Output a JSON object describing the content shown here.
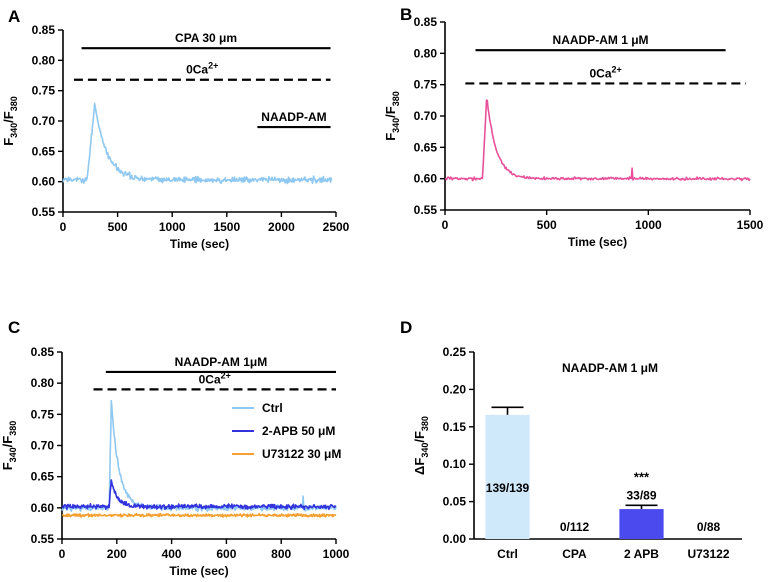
{
  "colors": {
    "panelA": "#8fc8f0",
    "panelB": "#e8509a",
    "ctrl": "#8fc8f0",
    "apb": "#3333dd",
    "u73122": "#f5a030",
    "barCtrl": "#cfe8fa",
    "bar2apb": "#4a4aee"
  },
  "chart_data": [
    {
      "panel": "A",
      "type": "line",
      "xlabel": "Time (sec)",
      "ylabel_main": "F",
      "ylabel_sub1": "340",
      "ylabel_sep": "/F",
      "ylabel_sub2": "380",
      "xlim": [
        0,
        2500
      ],
      "ylim": [
        0.55,
        0.85
      ],
      "xticks": [
        0,
        500,
        1000,
        1500,
        2000,
        2500
      ],
      "yticks": [
        0.55,
        0.6,
        0.65,
        0.7,
        0.75,
        0.8,
        0.85
      ],
      "annotations": [
        {
          "label": "CPA 30 μm",
          "style": "solid",
          "x": [
            170,
            2450
          ],
          "y": 0.82
        },
        {
          "label": "0Ca",
          "sup": "2+",
          "style": "dashed",
          "x": [
            100,
            2450
          ],
          "y": 0.768
        },
        {
          "label": "NAADP-AM",
          "style": "solid",
          "x": [
            1780,
            2450
          ],
          "y": 0.69
        }
      ],
      "series": [
        {
          "name": "CPA trace",
          "baseline": 0.603,
          "peak_x": 290,
          "peak_y": 0.728,
          "rise_x": 220,
          "decay": 110,
          "end_x": 2460
        }
      ]
    },
    {
      "panel": "B",
      "type": "line",
      "xlabel": "Time (sec)",
      "ylabel_main": "F",
      "ylabel_sub1": "340",
      "ylabel_sep": "/F",
      "ylabel_sub2": "380",
      "xlim": [
        0,
        1500
      ],
      "ylim": [
        0.55,
        0.85
      ],
      "xticks": [
        0,
        500,
        1000,
        1500
      ],
      "yticks": [
        0.55,
        0.6,
        0.65,
        0.7,
        0.75,
        0.8,
        0.85
      ],
      "annotations": [
        {
          "label": "NAADP-AM 1 μM",
          "style": "solid",
          "x": [
            150,
            1380
          ],
          "y": 0.805
        },
        {
          "label": "0Ca",
          "sup": "2+",
          "style": "dashed",
          "x": [
            100,
            1480
          ],
          "y": 0.752
        }
      ],
      "series": [
        {
          "name": "NAADP-AM trace",
          "baseline": 0.6,
          "peak_x": 205,
          "peak_y": 0.733,
          "rise_x": 185,
          "decay": 45,
          "end_x": 1500
        }
      ]
    },
    {
      "panel": "C",
      "type": "line",
      "xlabel": "Time (sec)",
      "ylabel_main": "F",
      "ylabel_sub1": "340",
      "ylabel_sep": "/F",
      "ylabel_sub2": "380",
      "xlim": [
        0,
        1000
      ],
      "ylim": [
        0.55,
        0.85
      ],
      "xticks": [
        0,
        200,
        400,
        600,
        800,
        1000
      ],
      "yticks": [
        0.55,
        0.6,
        0.65,
        0.7,
        0.75,
        0.8,
        0.85
      ],
      "annotations": [
        {
          "label": "NAADP-AM 1μM",
          "style": "solid",
          "x": [
            160,
            1000
          ],
          "y": 0.818
        },
        {
          "label": "0Ca",
          "sup": "2+",
          "style": "dashed",
          "x": [
            115,
            1000
          ],
          "y": 0.79
        }
      ],
      "legend_position": "middle-right",
      "series": [
        {
          "name": "Ctrl",
          "baseline": 0.6,
          "peak_x": 180,
          "peak_y": 0.77,
          "rise_x": 172,
          "decay": 28
        },
        {
          "name": "2-APB 50 μM",
          "baseline": 0.602,
          "peak_x": 180,
          "peak_y": 0.642,
          "rise_x": 172,
          "decay": 22
        },
        {
          "name": "U73122 30 μM",
          "baseline": 0.588,
          "peak_x": 0,
          "peak_y": 0.588,
          "rise_x": 0,
          "decay": 1
        }
      ]
    },
    {
      "panel": "D",
      "type": "bar",
      "title": "NAADP-AM 1 μM",
      "ylabel_main": "ΔF",
      "ylabel_sub1": "340",
      "ylabel_sep": "/F",
      "ylabel_sub2": "380",
      "ylim": [
        0,
        0.25
      ],
      "yticks": [
        0.0,
        0.05,
        0.1,
        0.15,
        0.2,
        0.25
      ],
      "categories": [
        "Ctrl",
        "CPA",
        "2 APB",
        "U73122"
      ],
      "values": [
        0.166,
        0.0,
        0.04,
        0.0
      ],
      "errors": [
        0.01,
        0,
        0.005,
        0
      ],
      "counts": [
        "139/139",
        "0/112",
        "33/89",
        "0/88"
      ],
      "significance": [
        "",
        "",
        "***",
        ""
      ]
    }
  ]
}
